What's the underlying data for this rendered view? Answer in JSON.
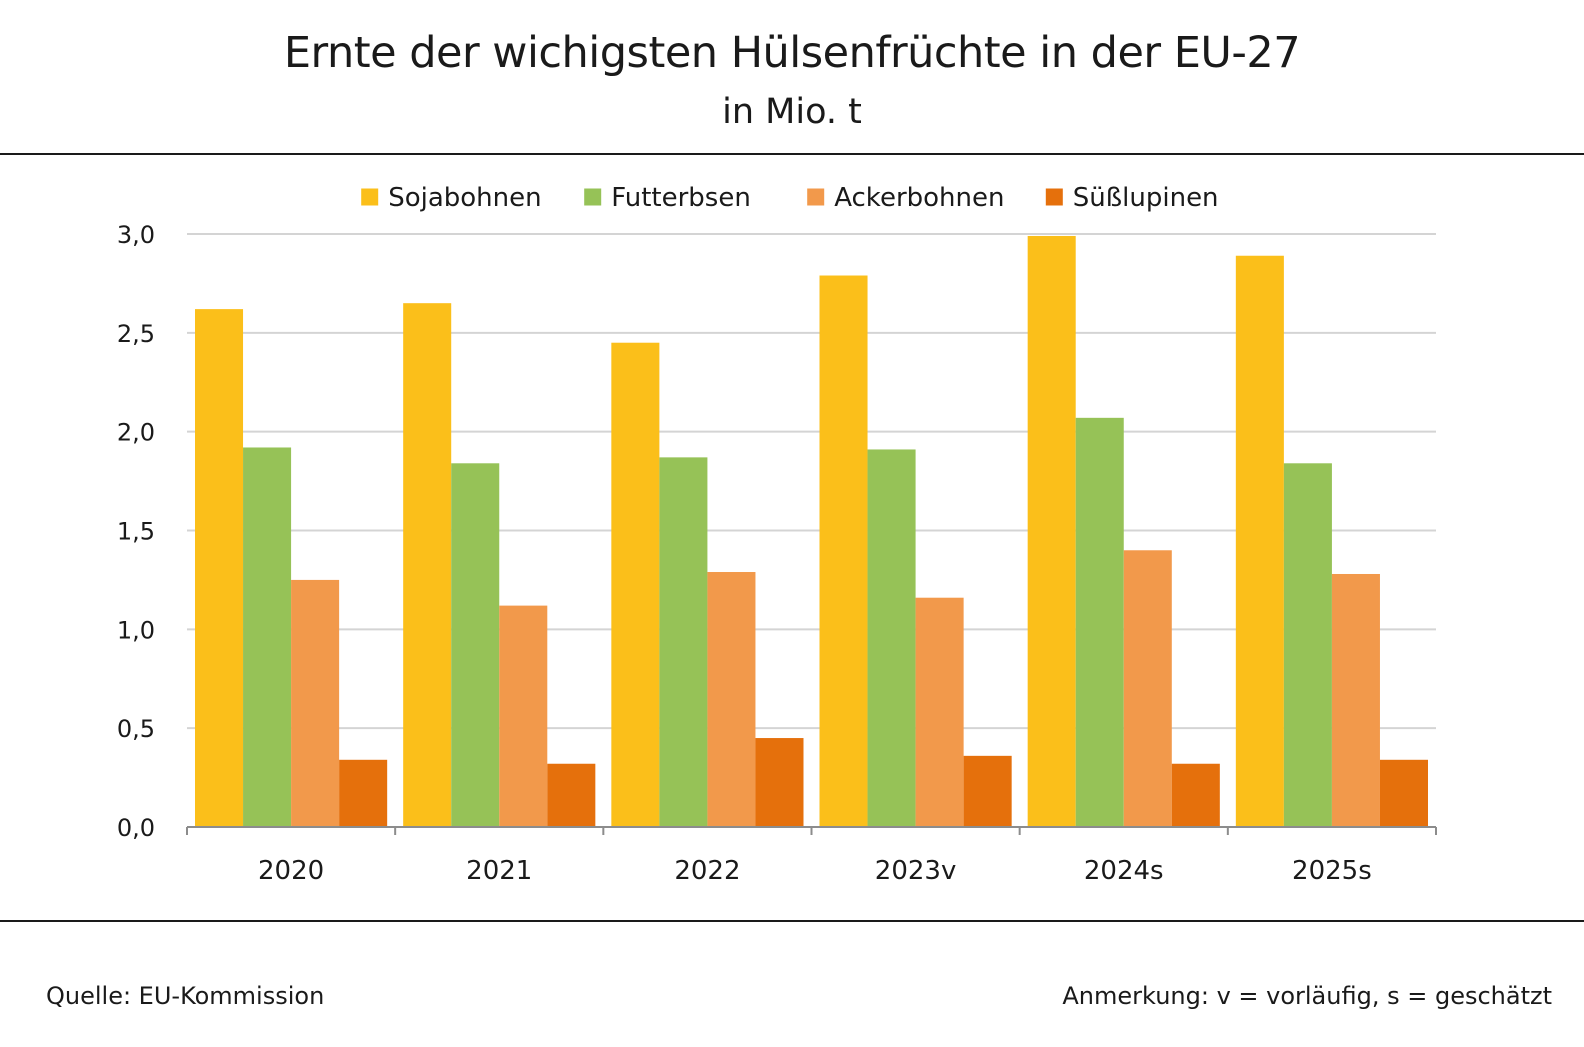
{
  "title": "Ernte der wichigsten Hülsenfrüchte in der EU-27",
  "subtitle": "in Mio. t",
  "footer": {
    "source": "Quelle: EU-Kommission",
    "note": "Anmerkung: v = vorläufig, s = geschätzt"
  },
  "chart_data": {
    "type": "bar",
    "title": "Ernte der wichigsten Hülsenfrüchte in der EU-27",
    "subtitle": "in Mio. t",
    "categories": [
      "2020",
      "2021",
      "2022",
      "2023v",
      "2024s",
      "2025s"
    ],
    "series": [
      {
        "name": "Sojabohnen",
        "color": "#FBBF1A",
        "values": [
          2.62,
          2.65,
          2.45,
          2.79,
          2.99,
          2.89
        ]
      },
      {
        "name": "Futterbsen",
        "color": "#96C257",
        "values": [
          1.92,
          1.84,
          1.87,
          1.91,
          2.07,
          1.84
        ]
      },
      {
        "name": "Ackerbohnen",
        "color": "#F2994B",
        "values": [
          1.25,
          1.12,
          1.29,
          1.16,
          1.4,
          1.28
        ]
      },
      {
        "name": "Süßlupinen",
        "color": "#E5700C",
        "values": [
          0.34,
          0.32,
          0.45,
          0.36,
          0.32,
          0.34
        ]
      }
    ],
    "ylim": [
      0,
      3
    ],
    "yticks": [
      "0,0",
      "0,5",
      "1,0",
      "1,5",
      "2,0",
      "2,5",
      "3,0"
    ],
    "grid": true,
    "legend": "top-center"
  }
}
